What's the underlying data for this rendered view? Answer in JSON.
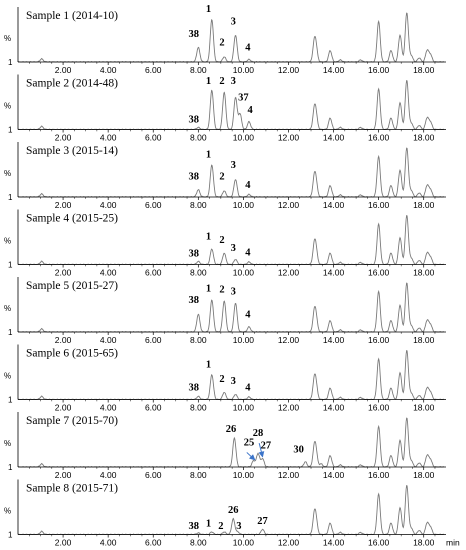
{
  "chart_data": {
    "type": "line",
    "xlabel": "min",
    "ylabel": "%",
    "y_scale_label": "1",
    "xlim": [
      0.0,
      18.9
    ],
    "x_ticks": [
      "2.00",
      "4.00",
      "6.00",
      "8.00",
      "10.00",
      "12.00",
      "14.00",
      "16.00",
      "18.00"
    ],
    "x_tick_values": [
      2,
      4,
      6,
      8,
      10,
      12,
      14,
      16,
      18
    ],
    "colors": {
      "trace": "#7a7a7a",
      "axis": "#000000",
      "arrow": "#3b74c9"
    },
    "common_peaks": [
      {
        "x": 1.05,
        "h": 0.06
      },
      {
        "x": 13.15,
        "h": 0.34
      },
      {
        "x": 13.22,
        "h": 0.22
      },
      {
        "x": 13.85,
        "h": 0.22
      },
      {
        "x": 14.3,
        "h": 0.04
      },
      {
        "x": 15.2,
        "h": 0.04
      },
      {
        "x": 16.0,
        "h": 0.78
      },
      {
        "x": 16.55,
        "h": 0.22
      },
      {
        "x": 16.95,
        "h": 0.52
      },
      {
        "x": 17.25,
        "h": 0.95
      },
      {
        "x": 17.45,
        "h": 0.12
      },
      {
        "x": 17.8,
        "h": 0.08
      },
      {
        "x": 18.15,
        "h": 0.22
      },
      {
        "x": 18.3,
        "h": 0.14
      }
    ],
    "panels": [
      {
        "title": "Sample 1 (2014-10)",
        "peaks": [
          {
            "x": 8.0,
            "h": 0.28
          },
          {
            "x": 8.6,
            "h": 0.82
          },
          {
            "x": 9.15,
            "h": 0.1
          },
          {
            "x": 9.65,
            "h": 0.52
          },
          {
            "x": 10.25,
            "h": 0.05
          }
        ],
        "labels": [
          {
            "text": "38",
            "x": 7.8,
            "h": 0.42
          },
          {
            "text": "1",
            "x": 8.45,
            "h": 0.9
          },
          {
            "text": "2",
            "x": 9.05,
            "h": 0.26
          },
          {
            "text": "3",
            "x": 9.55,
            "h": 0.66
          },
          {
            "text": "4",
            "x": 10.2,
            "h": 0.16
          }
        ]
      },
      {
        "title": "Sample 2 (2014-48)",
        "peaks": [
          {
            "x": 8.0,
            "h": 0.04
          },
          {
            "x": 8.6,
            "h": 0.76
          },
          {
            "x": 9.15,
            "h": 0.72
          },
          {
            "x": 9.65,
            "h": 0.62
          },
          {
            "x": 9.85,
            "h": 0.3
          },
          {
            "x": 10.25,
            "h": 0.15
          }
        ],
        "labels": [
          {
            "text": "38",
            "x": 7.8,
            "h": 0.08
          },
          {
            "text": "1",
            "x": 8.45,
            "h": 0.82
          },
          {
            "text": "2",
            "x": 9.05,
            "h": 0.82
          },
          {
            "text": "3",
            "x": 9.55,
            "h": 0.82
          },
          {
            "text": "37",
            "x": 10.0,
            "h": 0.5
          },
          {
            "text": "4",
            "x": 10.3,
            "h": 0.26
          }
        ]
      },
      {
        "title": "Sample 3 (2015-14)",
        "peaks": [
          {
            "x": 8.0,
            "h": 0.14
          },
          {
            "x": 8.6,
            "h": 0.62
          },
          {
            "x": 9.15,
            "h": 0.12
          },
          {
            "x": 9.65,
            "h": 0.34
          },
          {
            "x": 10.25,
            "h": 0.05
          }
        ],
        "labels": [
          {
            "text": "38",
            "x": 7.8,
            "h": 0.28
          },
          {
            "text": "1",
            "x": 8.45,
            "h": 0.7
          },
          {
            "text": "2",
            "x": 9.05,
            "h": 0.28
          },
          {
            "text": "3",
            "x": 9.55,
            "h": 0.5
          },
          {
            "text": "4",
            "x": 10.2,
            "h": 0.12
          }
        ]
      },
      {
        "title": "Sample 4 (2015-25)",
        "peaks": [
          {
            "x": 8.0,
            "h": 0.06
          },
          {
            "x": 8.6,
            "h": 0.3
          },
          {
            "x": 9.15,
            "h": 0.22
          },
          {
            "x": 9.65,
            "h": 0.1
          },
          {
            "x": 10.25,
            "h": 0.05
          }
        ],
        "labels": [
          {
            "text": "38",
            "x": 7.8,
            "h": 0.1
          },
          {
            "text": "1",
            "x": 8.45,
            "h": 0.42
          },
          {
            "text": "2",
            "x": 9.05,
            "h": 0.36
          },
          {
            "text": "3",
            "x": 9.55,
            "h": 0.2
          },
          {
            "text": "4",
            "x": 10.2,
            "h": 0.12
          }
        ]
      },
      {
        "title": "Sample 5 (2015-27)",
        "peaks": [
          {
            "x": 8.0,
            "h": 0.34
          },
          {
            "x": 8.6,
            "h": 0.62
          },
          {
            "x": 9.15,
            "h": 0.6
          },
          {
            "x": 9.65,
            "h": 0.56
          },
          {
            "x": 10.25,
            "h": 0.1
          }
        ],
        "labels": [
          {
            "text": "38",
            "x": 7.8,
            "h": 0.5
          },
          {
            "text": "1",
            "x": 8.45,
            "h": 0.72
          },
          {
            "text": "2",
            "x": 9.05,
            "h": 0.7
          },
          {
            "text": "3",
            "x": 9.55,
            "h": 0.66
          },
          {
            "text": "4",
            "x": 10.2,
            "h": 0.22
          }
        ]
      },
      {
        "title": "Sample 6 (2015-65)",
        "peaks": [
          {
            "x": 8.0,
            "h": 0.06
          },
          {
            "x": 8.6,
            "h": 0.48
          },
          {
            "x": 9.15,
            "h": 0.14
          },
          {
            "x": 9.65,
            "h": 0.1
          },
          {
            "x": 10.25,
            "h": 0.05
          }
        ],
        "labels": [
          {
            "text": "38",
            "x": 7.8,
            "h": 0.12
          },
          {
            "text": "1",
            "x": 8.45,
            "h": 0.56
          },
          {
            "text": "2",
            "x": 9.05,
            "h": 0.28
          },
          {
            "text": "3",
            "x": 9.55,
            "h": 0.24
          },
          {
            "text": "4",
            "x": 10.2,
            "h": 0.12
          }
        ]
      },
      {
        "title": "Sample 7 (2015-70)",
        "peaks": [
          {
            "x": 9.6,
            "h": 0.56
          },
          {
            "x": 10.45,
            "h": 0.12
          },
          {
            "x": 10.65,
            "h": 0.26
          },
          {
            "x": 10.85,
            "h": 0.16
          },
          {
            "x": 12.75,
            "h": 0.1
          },
          {
            "x": 13.45,
            "h": 0.06
          }
        ],
        "labels": [
          {
            "text": "26",
            "x": 9.45,
            "h": 0.62
          },
          {
            "text": "25",
            "x": 10.25,
            "h": 0.36
          },
          {
            "text": "28",
            "x": 10.65,
            "h": 0.54
          },
          {
            "text": "27",
            "x": 11.0,
            "h": 0.3
          },
          {
            "text": "30",
            "x": 12.45,
            "h": 0.22
          }
        ],
        "arrows": [
          {
            "from": [
              10.15,
              0.28
            ],
            "to": [
              10.5,
              0.14
            ]
          },
          {
            "from": [
              10.7,
              0.46
            ],
            "to": [
              10.85,
              0.2
            ]
          }
        ]
      },
      {
        "title": "Sample 8 (2015-71)",
        "peaks": [
          {
            "x": 8.0,
            "h": 0.03
          },
          {
            "x": 8.6,
            "h": 0.05
          },
          {
            "x": 9.15,
            "h": 0.05
          },
          {
            "x": 9.55,
            "h": 0.3
          },
          {
            "x": 9.75,
            "h": 0.05
          },
          {
            "x": 10.85,
            "h": 0.1
          }
        ],
        "labels": [
          {
            "text": "38",
            "x": 7.8,
            "h": 0.05
          },
          {
            "text": "1",
            "x": 8.45,
            "h": 0.1
          },
          {
            "text": "2",
            "x": 9.0,
            "h": 0.05
          },
          {
            "text": "26",
            "x": 9.55,
            "h": 0.36
          },
          {
            "text": "3",
            "x": 9.8,
            "h": 0.05
          },
          {
            "text": "27",
            "x": 10.85,
            "h": 0.14
          }
        ]
      }
    ]
  }
}
